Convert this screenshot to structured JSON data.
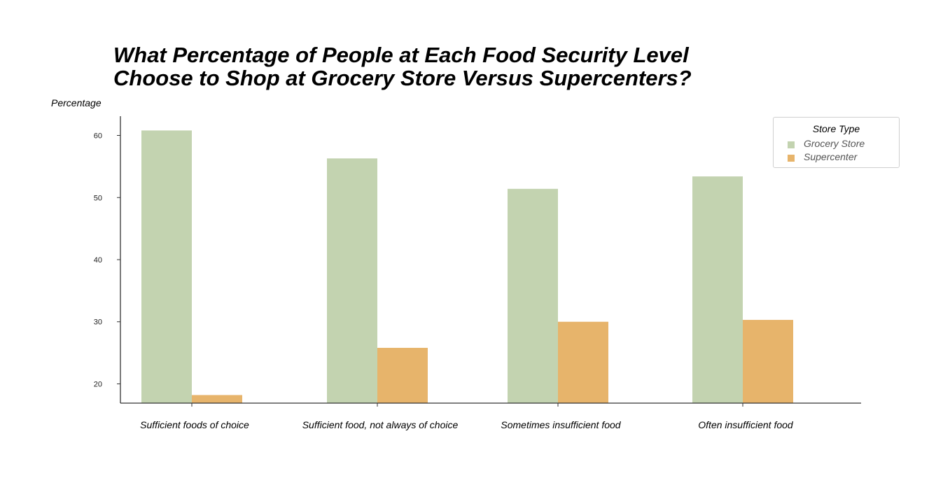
{
  "chart_data": {
    "type": "bar",
    "title": [
      "What Percentage of People at Each Food Security Level",
      "Choose to Shop at Grocery Store Versus Supercenters?"
    ],
    "ylabel": "Percentage",
    "xlabel": "",
    "categories": [
      "Sufficient foods of choice",
      "Sufficient food, not always of choice",
      "Sometimes insufficient food",
      "Often insufficient food"
    ],
    "series": [
      {
        "name": "Grocery Store",
        "values": [
          60.8,
          56.3,
          51.4,
          53.4
        ],
        "color": "#c3d3b0"
      },
      {
        "name": "Supercenter",
        "values": [
          18.2,
          25.8,
          30.0,
          30.3
        ],
        "color": "#e7b46b"
      }
    ],
    "yticks": [
      20,
      30,
      40,
      50,
      60
    ],
    "ylim": [
      16.9,
      63.1
    ],
    "grid": false,
    "legend": {
      "title": "Store Type",
      "position": "top-right"
    }
  }
}
